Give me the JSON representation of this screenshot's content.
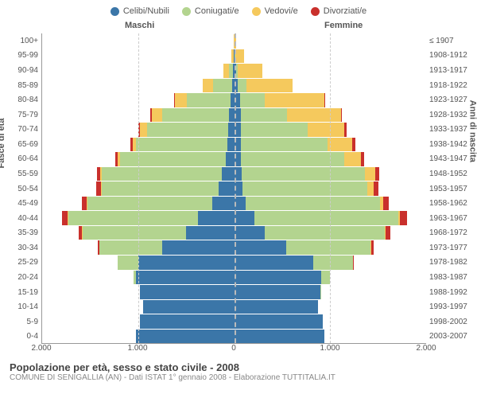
{
  "legend": [
    {
      "label": "Celibi/Nubili",
      "color": "#3b76a8"
    },
    {
      "label": "Coniugati/e",
      "color": "#b3d48f"
    },
    {
      "label": "Vedovi/e",
      "color": "#f5c95d"
    },
    {
      "label": "Divorziati/e",
      "color": "#c9302c"
    }
  ],
  "headers": {
    "male": "Maschi",
    "female": "Femmine"
  },
  "axis_labels": {
    "left": "Fasce di età",
    "right": "Anni di nascita"
  },
  "x_ticks": [
    {
      "pos": 0,
      "label": "2.000"
    },
    {
      "pos": 0.25,
      "label": "1.000"
    },
    {
      "pos": 0.5,
      "label": "0"
    },
    {
      "pos": 0.75,
      "label": "1.000"
    },
    {
      "pos": 1,
      "label": "2.000"
    }
  ],
  "x_gridlines": [
    0.25,
    0.75
  ],
  "x_max": 2000,
  "colors": {
    "celibi": "#3b76a8",
    "coniugati": "#b3d48f",
    "vedovi": "#f5c95d",
    "divorziati": "#c9302c",
    "grid": "#cccccc",
    "centerline": "#bbbbbb"
  },
  "title": "Popolazione per età, sesso e stato civile - 2008",
  "subtitle": "COMUNE DI SENIGALLIA (AN) - Dati ISTAT 1° gennaio 2008 - Elaborazione TUTTITALIA.IT",
  "rows": [
    {
      "age": "100+",
      "year": "≤ 1907",
      "m": {
        "cel": 0,
        "con": 0,
        "ved": 5,
        "div": 0
      },
      "f": {
        "cel": 2,
        "con": 0,
        "ved": 20,
        "div": 0
      }
    },
    {
      "age": "95-99",
      "year": "1908-1912",
      "m": {
        "cel": 3,
        "con": 5,
        "ved": 20,
        "div": 0
      },
      "f": {
        "cel": 8,
        "con": 3,
        "ved": 90,
        "div": 0
      }
    },
    {
      "age": "90-94",
      "year": "1913-1917",
      "m": {
        "cel": 10,
        "con": 40,
        "ved": 60,
        "div": 0
      },
      "f": {
        "cel": 20,
        "con": 20,
        "ved": 250,
        "div": 0
      }
    },
    {
      "age": "85-89",
      "year": "1918-1922",
      "m": {
        "cel": 20,
        "con": 200,
        "ved": 110,
        "div": 0
      },
      "f": {
        "cel": 40,
        "con": 90,
        "ved": 480,
        "div": 0
      }
    },
    {
      "age": "80-84",
      "year": "1923-1927",
      "m": {
        "cel": 40,
        "con": 450,
        "ved": 130,
        "div": 5
      },
      "f": {
        "cel": 60,
        "con": 260,
        "ved": 620,
        "div": 5
      }
    },
    {
      "age": "75-79",
      "year": "1928-1932",
      "m": {
        "cel": 50,
        "con": 700,
        "ved": 110,
        "div": 10
      },
      "f": {
        "cel": 70,
        "con": 480,
        "ved": 560,
        "div": 15
      }
    },
    {
      "age": "70-74",
      "year": "1933-1937",
      "m": {
        "cel": 60,
        "con": 850,
        "ved": 70,
        "div": 15
      },
      "f": {
        "cel": 70,
        "con": 700,
        "ved": 380,
        "div": 25
      }
    },
    {
      "age": "65-69",
      "year": "1938-1942",
      "m": {
        "cel": 70,
        "con": 950,
        "ved": 40,
        "div": 20
      },
      "f": {
        "cel": 70,
        "con": 900,
        "ved": 260,
        "div": 30
      }
    },
    {
      "age": "60-64",
      "year": "1943-1947",
      "m": {
        "cel": 90,
        "con": 1100,
        "ved": 25,
        "div": 25
      },
      "f": {
        "cel": 70,
        "con": 1080,
        "ved": 170,
        "div": 35
      }
    },
    {
      "age": "55-59",
      "year": "1948-1952",
      "m": {
        "cel": 130,
        "con": 1250,
        "ved": 15,
        "div": 35
      },
      "f": {
        "cel": 80,
        "con": 1280,
        "ved": 110,
        "div": 40
      }
    },
    {
      "age": "50-54",
      "year": "1953-1957",
      "m": {
        "cel": 160,
        "con": 1220,
        "ved": 10,
        "div": 45
      },
      "f": {
        "cel": 90,
        "con": 1300,
        "ved": 60,
        "div": 50
      }
    },
    {
      "age": "45-49",
      "year": "1958-1962",
      "m": {
        "cel": 230,
        "con": 1300,
        "ved": 5,
        "div": 50
      },
      "f": {
        "cel": 120,
        "con": 1400,
        "ved": 35,
        "div": 60
      }
    },
    {
      "age": "40-44",
      "year": "1963-1967",
      "m": {
        "cel": 380,
        "con": 1350,
        "ved": 5,
        "div": 55
      },
      "f": {
        "cel": 210,
        "con": 1500,
        "ved": 20,
        "div": 70
      }
    },
    {
      "age": "35-39",
      "year": "1968-1972",
      "m": {
        "cel": 500,
        "con": 1080,
        "ved": 3,
        "div": 40
      },
      "f": {
        "cel": 320,
        "con": 1250,
        "ved": 10,
        "div": 50
      }
    },
    {
      "age": "30-34",
      "year": "1973-1977",
      "m": {
        "cel": 750,
        "con": 650,
        "ved": 0,
        "div": 20
      },
      "f": {
        "cel": 540,
        "con": 880,
        "ved": 5,
        "div": 25
      }
    },
    {
      "age": "25-29",
      "year": "1978-1982",
      "m": {
        "cel": 1000,
        "con": 210,
        "ved": 0,
        "div": 5
      },
      "f": {
        "cel": 820,
        "con": 420,
        "ved": 0,
        "div": 10
      }
    },
    {
      "age": "20-24",
      "year": "1983-1987",
      "m": {
        "cel": 1020,
        "con": 25,
        "ved": 0,
        "div": 0
      },
      "f": {
        "cel": 910,
        "con": 90,
        "ved": 0,
        "div": 0
      }
    },
    {
      "age": "15-19",
      "year": "1988-1992",
      "m": {
        "cel": 980,
        "con": 0,
        "ved": 0,
        "div": 0
      },
      "f": {
        "cel": 900,
        "con": 5,
        "ved": 0,
        "div": 0
      }
    },
    {
      "age": "10-14",
      "year": "1993-1997",
      "m": {
        "cel": 950,
        "con": 0,
        "ved": 0,
        "div": 0
      },
      "f": {
        "cel": 870,
        "con": 0,
        "ved": 0,
        "div": 0
      }
    },
    {
      "age": "5-9",
      "year": "1998-2002",
      "m": {
        "cel": 980,
        "con": 0,
        "ved": 0,
        "div": 0
      },
      "f": {
        "cel": 920,
        "con": 0,
        "ved": 0,
        "div": 0
      }
    },
    {
      "age": "0-4",
      "year": "2003-2007",
      "m": {
        "cel": 1020,
        "con": 0,
        "ved": 0,
        "div": 0
      },
      "f": {
        "cel": 940,
        "con": 0,
        "ved": 0,
        "div": 0
      }
    }
  ]
}
